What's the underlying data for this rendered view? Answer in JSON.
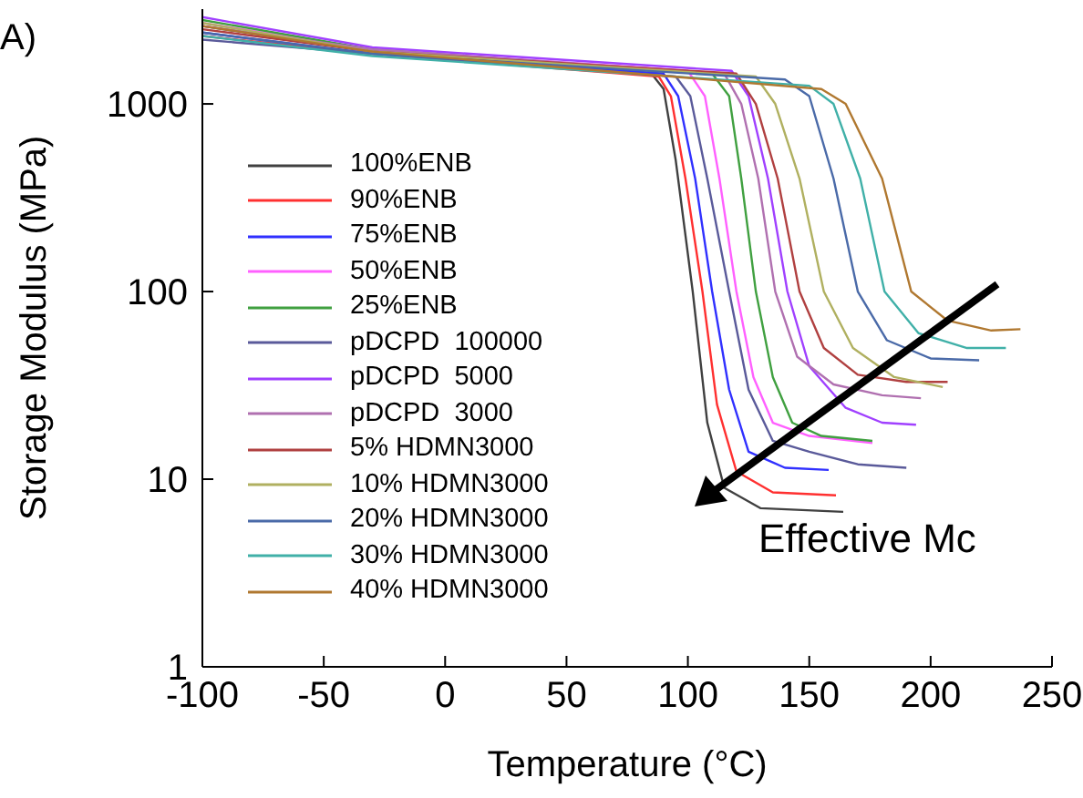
{
  "chart_data": {
    "type": "line",
    "xlabel": "Temperature (°C)",
    "ylabel": "Storage Modulus (MPa)",
    "xlim": [
      -100,
      250
    ],
    "xticks": [
      -100,
      -50,
      0,
      50,
      100,
      150,
      200,
      250
    ],
    "ylim": [
      1,
      3200
    ],
    "yticks": [
      1,
      10,
      100,
      1000
    ],
    "log": "y",
    "grid": false,
    "legend": "left",
    "marker": "none",
    "line_style": "solid",
    "annotations": [
      "A)",
      "Effective Mc"
    ],
    "series": [
      {
        "name": "100%ENB",
        "color": "#404040",
        "x": [
          -100,
          -30,
          85,
          90,
          95,
          102,
          108,
          115,
          130,
          164
        ],
        "values": [
          2600,
          1900,
          1450,
          1200,
          500,
          100,
          20,
          9,
          7,
          6.7
        ]
      },
      {
        "name": "90%ENB",
        "color": "#ff3030",
        "x": [
          -100,
          -30,
          88,
          93,
          99,
          106,
          112,
          120,
          135,
          161
        ],
        "values": [
          2300,
          1850,
          1400,
          1100,
          400,
          100,
          25,
          11,
          8.5,
          8.2
        ]
      },
      {
        "name": "75%ENB",
        "color": "#3030ff",
        "x": [
          -100,
          -30,
          90,
          96,
          103,
          110,
          117,
          125,
          140,
          158
        ],
        "values": [
          2400,
          1850,
          1450,
          1100,
          400,
          100,
          30,
          14,
          11.5,
          11.2
        ]
      },
      {
        "name": "50%ENB",
        "color": "#ff60ff",
        "x": [
          -100,
          -30,
          100,
          107,
          113,
          120,
          127,
          135,
          150,
          176
        ],
        "values": [
          2700,
          1950,
          1500,
          1100,
          400,
          100,
          35,
          20,
          17,
          15.6
        ]
      },
      {
        "name": "25%ENB",
        "color": "#40a040",
        "x": [
          -100,
          -30,
          110,
          117,
          122,
          128,
          135,
          143,
          155,
          176
        ],
        "values": [
          2800,
          1950,
          1450,
          1100,
          400,
          100,
          35,
          20,
          17,
          16
        ]
      },
      {
        "name": "pDCPD  100000",
        "color": "#5a5a9a",
        "x": [
          -100,
          -30,
          95,
          101,
          108,
          117,
          125,
          135,
          150,
          170,
          190
        ],
        "values": [
          2200,
          1850,
          1400,
          1100,
          400,
          100,
          30,
          16,
          14,
          12,
          11.5
        ]
      },
      {
        "name": "pDCPD  5000",
        "color": "#a040ff",
        "x": [
          -100,
          -30,
          118,
          125,
          133,
          141,
          150,
          165,
          180,
          194
        ],
        "values": [
          2900,
          2000,
          1500,
          1100,
          400,
          100,
          40,
          24,
          20,
          19.5
        ]
      },
      {
        "name": "pDCPD  3000",
        "color": "#b070b0",
        "x": [
          -100,
          -30,
          115,
          122,
          129,
          136,
          145,
          160,
          180,
          196
        ],
        "values": [
          2600,
          1950,
          1450,
          1000,
          400,
          100,
          45,
          32,
          28,
          27
        ]
      },
      {
        "name": "5% HDMN3000",
        "color": "#b04040",
        "x": [
          -100,
          -30,
          120,
          128,
          137,
          146,
          156,
          170,
          190,
          207
        ],
        "values": [
          2500,
          1900,
          1450,
          1000,
          400,
          100,
          50,
          36,
          33,
          33
        ]
      },
      {
        "name": "10% HDMN3000",
        "color": "#b0b060",
        "x": [
          -100,
          -30,
          128,
          136,
          146,
          156,
          168,
          185,
          205
        ],
        "values": [
          2700,
          1900,
          1400,
          1000,
          400,
          100,
          50,
          35,
          31
        ]
      },
      {
        "name": "20% HDMN3000",
        "color": "#4a6aa8",
        "x": [
          -100,
          -30,
          140,
          150,
          160,
          170,
          182,
          200,
          220
        ],
        "values": [
          2400,
          1850,
          1350,
          1100,
          400,
          100,
          55,
          44,
          43
        ]
      },
      {
        "name": "30% HDMN3000",
        "color": "#40b0a8",
        "x": [
          -100,
          -30,
          150,
          160,
          171,
          181,
          195,
          215,
          231
        ],
        "values": [
          2300,
          1800,
          1250,
          1000,
          400,
          100,
          60,
          50,
          50
        ]
      },
      {
        "name": "40% HDMN3000",
        "color": "#b07830",
        "x": [
          -100,
          -30,
          155,
          165,
          180,
          192,
          207,
          225,
          237
        ],
        "values": [
          2600,
          1900,
          1200,
          1000,
          400,
          100,
          70,
          62,
          63
        ]
      }
    ]
  }
}
